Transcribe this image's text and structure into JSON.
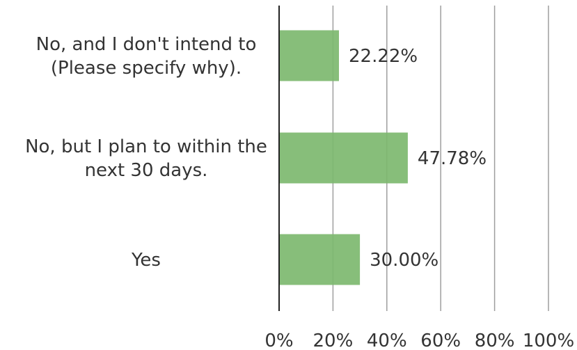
{
  "chart_data": {
    "type": "bar",
    "orientation": "horizontal",
    "categories": [
      [
        "No, and I don't intend to",
        "(Please specify why)."
      ],
      [
        "No, but I plan to within the",
        "next 30 days."
      ],
      [
        "Yes"
      ]
    ],
    "values": [
      22.22,
      47.78,
      30.0
    ],
    "data_labels": [
      "22.22%",
      "47.78%",
      "30.00%"
    ],
    "xlim": [
      0,
      100
    ],
    "x_ticks": [
      0,
      20,
      40,
      60,
      80,
      100
    ],
    "x_tick_labels": [
      "0%",
      "20%",
      "40%",
      "60%",
      "80%",
      "100%"
    ],
    "grid": true,
    "colors": {
      "bar": "#7db86f",
      "grid": "#9e9e9e",
      "axis": "#222222",
      "text": "#333333"
    }
  }
}
